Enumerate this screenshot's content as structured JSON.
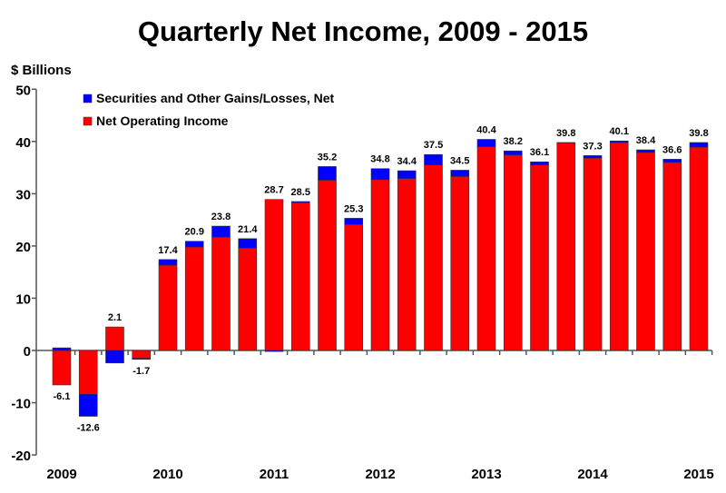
{
  "chart_data": {
    "type": "bar",
    "stacked": true,
    "title": "Quarterly Net Income, 2009 - 2015",
    "ylabel": "$ Billions",
    "xlabel": "",
    "ylim": [
      -20,
      50
    ],
    "yticks": [
      -20,
      -10,
      0,
      10,
      20,
      30,
      40,
      50
    ],
    "year_labels": [
      "2009",
      "2010",
      "2011",
      "2012",
      "2013",
      "2014",
      "2015"
    ],
    "legend_position": "top-left",
    "categories": [
      "2009Q1",
      "2009Q2",
      "2009Q3",
      "2009Q4",
      "2010Q1",
      "2010Q2",
      "2010Q3",
      "2010Q4",
      "2011Q1",
      "2011Q2",
      "2011Q3",
      "2011Q4",
      "2012Q1",
      "2012Q2",
      "2012Q3",
      "2012Q4",
      "2013Q1",
      "2013Q2",
      "2013Q3",
      "2013Q4",
      "2014Q1",
      "2014Q2",
      "2014Q3",
      "2014Q4",
      "2015Q1"
    ],
    "series": [
      {
        "name": "Net Operating Income",
        "color": "#ff0000",
        "values": [
          -6.6,
          -8.4,
          4.5,
          -1.5,
          16.3,
          19.8,
          21.7,
          19.6,
          28.9,
          28.3,
          32.6,
          24.1,
          32.7,
          32.9,
          35.5,
          33.3,
          39.0,
          37.4,
          35.5,
          39.7,
          36.8,
          39.8,
          37.9,
          36.0,
          38.9
        ]
      },
      {
        "name": "Securities and Other Gains/Losses, Net",
        "color": "#0000ff",
        "values": [
          0.5,
          -4.2,
          -2.4,
          -0.2,
          1.1,
          1.1,
          2.1,
          1.8,
          -0.2,
          0.2,
          2.6,
          1.2,
          2.1,
          1.5,
          2.0,
          1.2,
          1.4,
          0.8,
          0.6,
          0.1,
          0.5,
          0.3,
          0.5,
          0.6,
          0.9
        ]
      }
    ],
    "totals": [
      "-6.1",
      "-12.6",
      "2.1",
      "-1.7",
      "17.4",
      "20.9",
      "23.8",
      "21.4",
      "28.7",
      "28.5",
      "35.2",
      "25.3",
      "34.8",
      "34.4",
      "37.5",
      "34.5",
      "40.4",
      "38.2",
      "36.1",
      "39.8",
      "37.3",
      "40.1",
      "38.4",
      "36.6",
      "39.8"
    ]
  }
}
